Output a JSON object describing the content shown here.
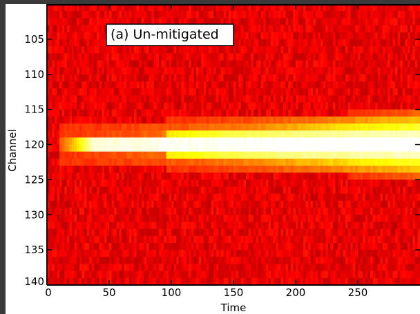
{
  "chart_data": {
    "type": "heatmap",
    "title": "",
    "annotation": "(a) Un-mitigated",
    "xlabel": "Time",
    "ylabel": "Channel",
    "xlim": [
      0,
      300
    ],
    "ylim": [
      140,
      100
    ],
    "x_ticks": [
      0,
      50,
      100,
      150,
      200,
      250
    ],
    "y_ticks": [
      105,
      110,
      115,
      120,
      125,
      130,
      135,
      140
    ],
    "colormap": "hot",
    "background_level": "dark red noise",
    "features": [
      {
        "description": "bright horizontal band",
        "channel_center": 120,
        "start_time": 10,
        "end_time": 300,
        "width_channels_start": 1,
        "width_channels_end": 5,
        "peak_intensity": 1.0
      }
    ],
    "grid": false,
    "colors": {
      "background": "#b80000",
      "band_core": "#ffffff",
      "band_edge": "#ffdd00",
      "frame": "#3a3a3a"
    }
  }
}
